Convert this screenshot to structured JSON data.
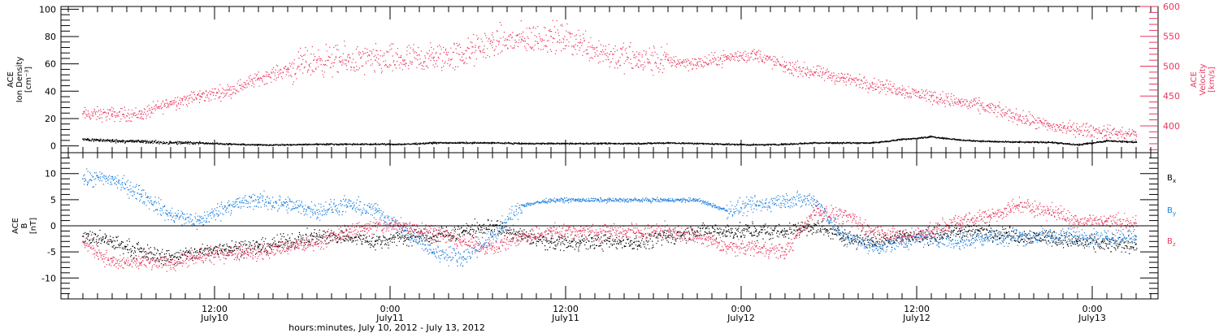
{
  "colors": {
    "density": "#000000",
    "velocity": "#e8365e",
    "bx": "#000000",
    "by": "#1a7fe0",
    "bz": "#e8365e"
  },
  "chart_data": [
    {
      "type": "scatter",
      "panel": "top",
      "ylabel_lines": [
        "ACE",
        "Ion Density",
        "[cm⁻³]"
      ],
      "y2label_lines": [
        "ACE",
        "Velocity",
        "[km/s]"
      ],
      "ylim": [
        -5,
        102
      ],
      "y2lim": [
        355,
        600
      ],
      "yticks": [
        "0",
        "20",
        "40",
        "60",
        "80",
        "100"
      ],
      "y2ticks": [
        "400",
        "450",
        "500",
        "550",
        "600"
      ],
      "series": [
        {
          "axis": "left",
          "color_key": "density",
          "x": [
            0,
            2,
            4,
            6,
            8,
            10,
            12,
            14,
            16,
            18,
            20,
            22,
            24,
            26,
            28,
            30,
            32,
            34,
            36,
            38,
            40,
            42,
            44,
            46,
            48,
            50,
            52,
            54,
            56,
            58,
            60,
            62,
            64,
            66,
            68,
            70,
            72
          ],
          "y": [
            5,
            4,
            3.5,
            2.5,
            2.5,
            1.5,
            1,
            1,
            1.5,
            1.5,
            1.5,
            1.5,
            2.5,
            2.5,
            2.5,
            2,
            2,
            2,
            2,
            2,
            2.5,
            2,
            1.5,
            1,
            1.5,
            2.5,
            2.5,
            2.5,
            5,
            7,
            4.5,
            3.5,
            3,
            3,
            1,
            4,
            3
          ]
        },
        {
          "axis": "right",
          "color_key": "velocity",
          "x": [
            0,
            2,
            4,
            6,
            8,
            10,
            12,
            14,
            16,
            18,
            20,
            22,
            24,
            26,
            28,
            30,
            32,
            34,
            36,
            38,
            40,
            42,
            44,
            46,
            48,
            50,
            52,
            54,
            56,
            58,
            60,
            62,
            64,
            66,
            68,
            70,
            72
          ],
          "y": [
            420,
            420,
            420,
            440,
            450,
            460,
            480,
            495,
            510,
            510,
            510,
            510,
            515,
            520,
            540,
            545,
            550,
            540,
            520,
            510,
            510,
            505,
            515,
            520,
            500,
            490,
            480,
            470,
            460,
            450,
            440,
            430,
            415,
            400,
            395,
            390,
            385
          ]
        }
      ]
    },
    {
      "type": "scatter",
      "panel": "bottom",
      "ylabel_lines": [
        "ACE",
        "B",
        "[nT]"
      ],
      "ylim": [
        -14,
        14
      ],
      "yticks": [
        "-10",
        "-5",
        "0",
        "5",
        "10"
      ],
      "legend": [
        "B",
        "B",
        "B"
      ],
      "legend_subs": [
        "x",
        "y",
        "z"
      ],
      "series": [
        {
          "color_key": "bx",
          "x": [
            0,
            2,
            4,
            6,
            8,
            10,
            12,
            14,
            16,
            18,
            20,
            22,
            24,
            26,
            28,
            30,
            32,
            34,
            36,
            38,
            40,
            42,
            44,
            46,
            48,
            50,
            52,
            54,
            56,
            58,
            60,
            62,
            64,
            66,
            68,
            70,
            72
          ],
          "y": [
            -2,
            -3,
            -5,
            -6,
            -5,
            -4,
            -4,
            -3,
            -2,
            -2,
            -3,
            -2,
            -2,
            -1,
            0,
            -2,
            -3,
            -3,
            -3,
            -3,
            -2,
            -1,
            -1,
            -1,
            -1,
            0,
            -2,
            -3,
            -2,
            -2,
            -1,
            -1,
            -2,
            -2,
            -3,
            -3.5,
            -3.5
          ]
        },
        {
          "color_key": "by",
          "x": [
            0,
            2,
            4,
            6,
            8,
            10,
            12,
            14,
            16,
            18,
            20,
            22,
            24,
            26,
            28,
            30,
            32,
            34,
            36,
            38,
            40,
            42,
            44,
            46,
            48,
            50,
            52,
            54,
            56,
            58,
            60,
            62,
            64,
            66,
            68,
            70,
            72
          ],
          "y": [
            9,
            9,
            6,
            2,
            1,
            4,
            5,
            4,
            3,
            4,
            3,
            -1,
            -5,
            -6,
            -2,
            4,
            5,
            5,
            5,
            5,
            5,
            5,
            3,
            4,
            5,
            5,
            -2,
            -4,
            -3,
            -2,
            -3,
            -2,
            -2,
            -2,
            -2,
            -2,
            -2
          ]
        },
        {
          "color_key": "bz",
          "x": [
            0,
            2,
            4,
            6,
            8,
            10,
            12,
            14,
            16,
            18,
            20,
            22,
            24,
            26,
            28,
            30,
            32,
            34,
            36,
            38,
            40,
            42,
            44,
            46,
            48,
            50,
            52,
            54,
            56,
            58,
            60,
            62,
            64,
            66,
            68,
            70,
            72
          ],
          "y": [
            -3,
            -7,
            -7,
            -7,
            -6,
            -5,
            -5,
            -4,
            -3,
            -1,
            0,
            0,
            -1,
            -3,
            -4,
            -2,
            -1,
            -1,
            -1,
            -1,
            -1,
            -2,
            -4,
            -4,
            -5,
            3,
            2,
            -1,
            -2,
            -1,
            1,
            2,
            4,
            3,
            1,
            1,
            0.5
          ]
        }
      ]
    }
  ],
  "xaxis": {
    "xlim": [
      -1.5,
      73.5
    ],
    "major_ticks": [
      9,
      21,
      33,
      45,
      57,
      69
    ],
    "tick_labels": [
      {
        "x": 9,
        "time": "12:00",
        "date": "July10"
      },
      {
        "x": 21,
        "time": "0:00",
        "date": "July11"
      },
      {
        "x": 33,
        "time": "12:00",
        "date": "July11"
      },
      {
        "x": 45,
        "time": "0:00",
        "date": "July12"
      },
      {
        "x": 57,
        "time": "12:00",
        "date": "July12"
      },
      {
        "x": 69,
        "time": "0:00",
        "date": "July13"
      }
    ],
    "label": "hours:minutes, July 10, 2012 - July 13, 2012"
  }
}
